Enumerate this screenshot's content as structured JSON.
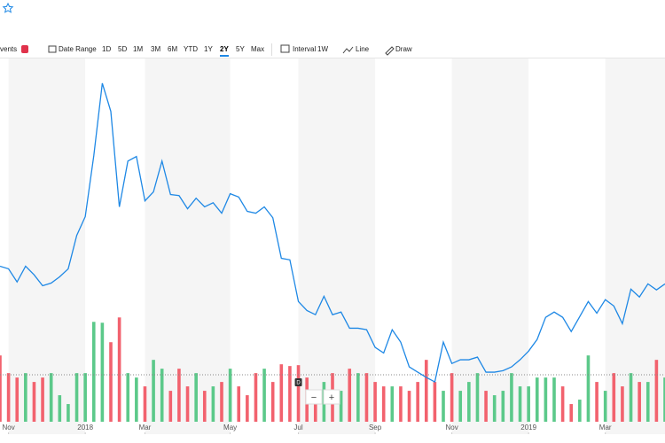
{
  "toolbar": {
    "events": "vents",
    "date_range": "Date Range",
    "ranges": [
      "1D",
      "5D",
      "1M",
      "3M",
      "6M",
      "YTD",
      "1Y",
      "2Y",
      "5Y",
      "Max"
    ],
    "active_range": 7,
    "interval_label": "Interval",
    "interval": "1W",
    "chart_type": "Line",
    "draw": "Draw"
  },
  "chart_data": {
    "type": "line",
    "x": [
      0,
      1,
      2,
      3,
      4,
      5,
      6,
      7,
      8,
      9,
      10,
      11,
      12,
      13,
      14,
      15,
      16,
      17,
      18,
      19,
      20,
      21,
      22,
      23,
      24,
      25,
      26,
      27,
      28,
      29,
      30,
      31,
      32,
      33,
      34,
      35,
      36,
      37,
      38,
      39,
      40,
      41,
      42,
      43,
      44,
      45,
      46,
      47,
      48,
      49,
      50,
      51,
      52,
      53,
      54,
      55,
      56,
      57,
      58,
      59,
      60,
      61,
      62,
      63,
      64,
      65,
      66,
      67,
      68,
      69,
      70,
      71,
      72,
      73,
      74,
      75,
      76,
      77,
      78
    ],
    "series": [
      {
        "color": "#1e88e5",
        "values": [
          44.7,
          44.0,
          40.5,
          44.7,
          42.4,
          39.5,
          40.2,
          41.9,
          44.0,
          52.9,
          57.9,
          74.1,
          93.4,
          85.9,
          60.5,
          72.7,
          73.9,
          62.1,
          64.5,
          72.7,
          63.8,
          63.5,
          60.0,
          62.8,
          60.5,
          61.6,
          58.8,
          64.0,
          63.1,
          59.3,
          58.8,
          60.5,
          57.6,
          46.8,
          46.4,
          35.3,
          32.9,
          31.8,
          36.7,
          31.8,
          32.5,
          28.2,
          28.2,
          27.8,
          23.1,
          21.6,
          27.8,
          24.5,
          17.9,
          16.5,
          15.1,
          13.9,
          24.5,
          18.8,
          19.8,
          19.8,
          20.5,
          16.5,
          16.5,
          16.9,
          17.9,
          19.8,
          22.1,
          25.2,
          31.1,
          32.5,
          31.1,
          27.3,
          31.3,
          35.3,
          32.2,
          35.8,
          34.1,
          29.4,
          38.6,
          36.5,
          40.0,
          38.4,
          40.0
        ]
      }
    ],
    "volume": [
      75,
      55,
      50,
      55,
      45,
      50,
      55,
      30,
      20,
      55,
      55,
      113,
      112,
      90,
      118,
      55,
      50,
      40,
      70,
      60,
      35,
      60,
      40,
      55,
      35,
      40,
      45,
      60,
      40,
      30,
      55,
      60,
      45,
      65,
      63,
      64,
      50,
      35,
      45,
      55,
      35,
      60,
      55,
      55,
      45,
      40,
      40,
      40,
      35,
      45,
      70,
      45,
      35,
      55,
      35,
      45,
      55,
      35,
      30,
      35,
      55,
      40,
      40,
      50,
      50,
      50,
      40,
      20,
      25,
      75,
      45,
      35,
      55,
      40,
      55,
      45,
      45,
      70,
      50
    ],
    "up_color": "#5cc98a",
    "down_color": "#f2626e",
    "xlim": [
      0,
      78
    ],
    "ylim": [
      0,
      100
    ],
    "y2lim": [
      0,
      425
    ],
    "xticks": [
      {
        "value": 1,
        "label": "Nov"
      },
      {
        "value": 10,
        "label": "2018"
      },
      {
        "value": 17,
        "label": "Mar"
      },
      {
        "value": 27,
        "label": "May"
      },
      {
        "value": 35,
        "label": "Jul"
      },
      {
        "value": 44,
        "label": "Sep"
      },
      {
        "value": 53,
        "label": "Nov"
      },
      {
        "value": 62,
        "label": "2019"
      },
      {
        "value": 71,
        "label": "Mar"
      }
    ],
    "reference_line": 15.8,
    "dividend_marker": {
      "x": 35,
      "label": "D"
    },
    "zoom": [
      "−",
      "+"
    ]
  }
}
